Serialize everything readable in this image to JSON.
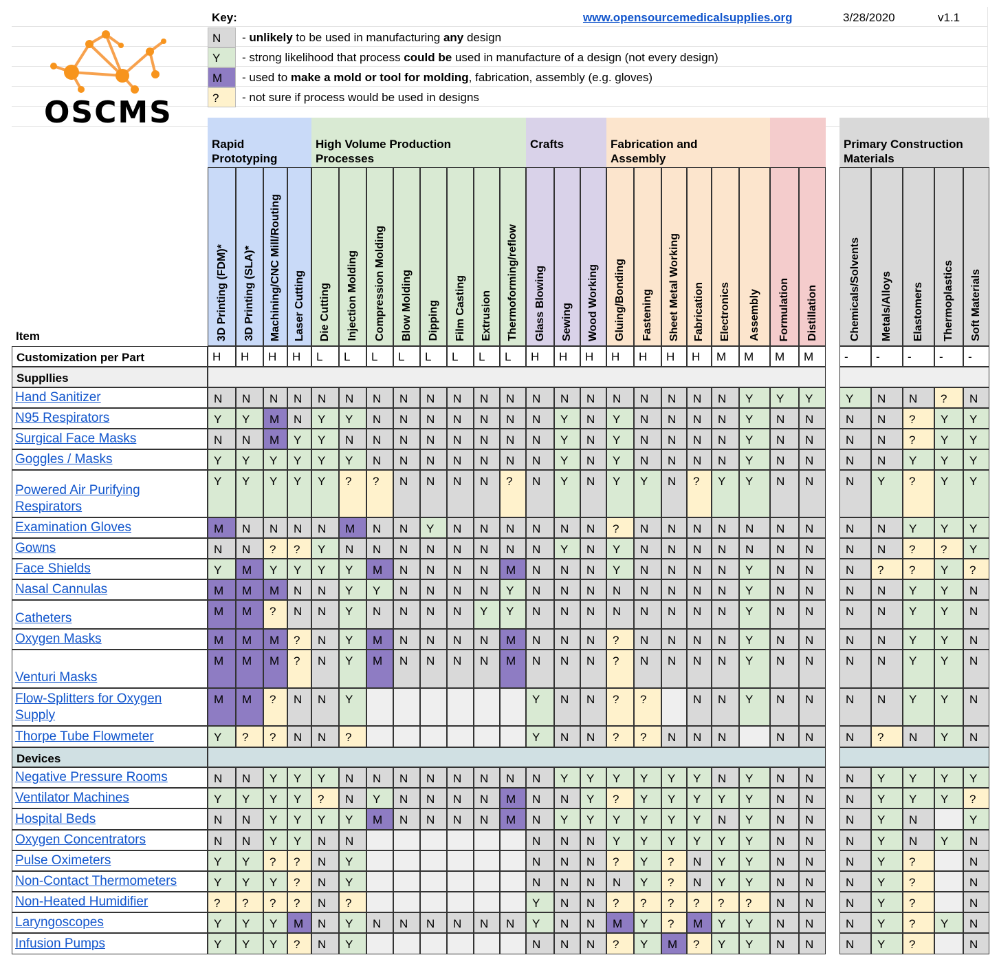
{
  "header": {
    "key_label": "Key:",
    "url": "www.opensourcemedicalsupplies.org",
    "date": "3/28/2020",
    "version": "v1.1",
    "logo_text": "OSCMS"
  },
  "key": [
    {
      "code": "N",
      "color": "#d9d9d9",
      "parts": [
        "- ",
        {
          "b": "unlikely"
        },
        " to be used in manufacturing ",
        {
          "b": "any"
        },
        " design"
      ]
    },
    {
      "code": "Y",
      "color": "#d9ead3",
      "parts": [
        "- strong likelihood that process ",
        {
          "b": "could be"
        },
        " used in manufacture of a design (not every design)"
      ]
    },
    {
      "code": "M",
      "color": "#8e7cc3",
      "parts": [
        "- used to ",
        {
          "b": "make a mold or tool for molding"
        },
        ", fabrication, assembly (e.g. gloves)"
      ]
    },
    {
      "code": "?",
      "color": "#fff2cc",
      "parts": [
        "- not sure if process would be used in designs"
      ]
    }
  ],
  "colors": {
    "N": "#d9d9d9",
    "Y": "#d9ead3",
    "M": "#8e7cc3",
    "?": "#fff2cc",
    "blank": "#efefef",
    "rapid": "#c9daf8",
    "hvp": "#d9ead3",
    "crafts": "#d9d2e9",
    "fab": "#fce5cd",
    "form": "#f4cccc",
    "materials": "#d9d9d9",
    "section_supplies": "#efefef",
    "section_devices": "#d0e0e3"
  },
  "groups": [
    {
      "label": "Rapid\nPrototyping",
      "color_key": "rapid",
      "span": 4
    },
    {
      "label": "High Volume Production\nProcesses",
      "color_key": "hvp",
      "span": 8
    },
    {
      "label": "Crafts",
      "color_key": "crafts",
      "span": 3
    },
    {
      "label": "Fabrication and\nAssembly",
      "color_key": "fab",
      "span": 6
    },
    {
      "label": "",
      "color_key": "form",
      "span": 2
    },
    {
      "label": "Primary Construction\nMaterials",
      "color_key": "materials",
      "span": 5
    }
  ],
  "item_header": "Item",
  "columns": [
    "3D Printing (FDM)*",
    "3D Printing (SLA)*",
    "Machining/CNC Mill/Routing",
    "Laser Cutting",
    "Die Cutting",
    "Injection Molding",
    "Compression Molding",
    "Blow Molding",
    "Dipping",
    "Film Casting",
    "Extrusion",
    "Thermoforming/reflow",
    "Glass Blowing",
    "Sewing",
    "Wood Working",
    "Gluing/Bonding",
    "Fastening",
    "Sheet Metal Working",
    "Fabrication",
    "Electronics",
    "Assembly",
    "Formulation",
    "Distillation",
    "Chemicals/Solvents",
    "Metals/Alloys",
    "Elastomers",
    "Thermoplastics",
    "Soft Materials"
  ],
  "customization": {
    "label": "Customization per Part",
    "values": [
      "H",
      "H",
      "H",
      "H",
      "L",
      "L",
      "L",
      "L",
      "L",
      "L",
      "L",
      "L",
      "H",
      "H",
      "H",
      "H",
      "H",
      "H",
      "H",
      "M",
      "M",
      "M",
      "M",
      "-",
      "-",
      "-",
      "-",
      "-"
    ]
  },
  "sections": [
    {
      "title": "Suppllies",
      "color_key": "section_supplies",
      "rows": [
        {
          "item": "Hand Sanitizer",
          "v": [
            "N",
            "N",
            "N",
            "N",
            "N",
            "N",
            "N",
            "N",
            "N",
            "N",
            "N",
            "N",
            "N",
            "N",
            "N",
            "N",
            "N",
            "N",
            "N",
            "N",
            "Y",
            "Y",
            "Y",
            "Y",
            "N",
            "N",
            "?",
            "N"
          ]
        },
        {
          "item": "N95 Respirators",
          "v": [
            "Y",
            "Y",
            "M",
            "N",
            "Y",
            "Y",
            "N",
            "N",
            "N",
            "N",
            "N",
            "N",
            "N",
            "Y",
            "N",
            "Y",
            "N",
            "N",
            "N",
            "N",
            "Y",
            "N",
            "N",
            "N",
            "N",
            "?",
            "Y",
            "Y"
          ]
        },
        {
          "item": "Surgical Face Masks",
          "v": [
            "N",
            "N",
            "M",
            "Y",
            "Y",
            "N",
            "N",
            "N",
            "N",
            "N",
            "N",
            "N",
            "N",
            "Y",
            "N",
            "Y",
            "N",
            "N",
            "N",
            "N",
            "Y",
            "N",
            "N",
            "N",
            "N",
            "?",
            "Y",
            "Y"
          ]
        },
        {
          "item": "Goggles / Masks",
          "v": [
            "Y",
            "Y",
            "Y",
            "Y",
            "Y",
            "Y",
            "N",
            "N",
            "N",
            "N",
            "N",
            "N",
            "N",
            "Y",
            "N",
            "Y",
            "N",
            "N",
            "N",
            "N",
            "Y",
            "N",
            "N",
            "N",
            "N",
            "Y",
            "Y",
            "Y"
          ]
        },
        {
          "item": "Powered Air Purifying \nRespirators",
          "v": [
            "Y",
            "Y",
            "Y",
            "Y",
            "Y",
            "?",
            "?",
            "N",
            "N",
            "N",
            "N",
            "?",
            "N",
            "Y",
            "N",
            "Y",
            "Y",
            "N",
            "?",
            "Y",
            "Y:",
            "N",
            "N",
            "N",
            "Y",
            "?",
            "Y",
            "Y"
          ]
        },
        {
          "item": "Examination Gloves",
          "v": [
            "M",
            "N",
            "N",
            "N",
            "N",
            "M",
            "N",
            "N",
            "Y",
            "N",
            "N",
            "N",
            "N",
            "N",
            "N",
            "?",
            "N",
            "N",
            "N",
            "N",
            "N",
            "N",
            "N",
            "N",
            "N",
            "Y",
            "Y",
            "Y"
          ]
        },
        {
          "item": "Gowns",
          "v": [
            "N",
            "N",
            "?",
            "?",
            "Y",
            "N",
            "N",
            "N",
            "N",
            "N",
            "N",
            "N",
            "N",
            "Y",
            "N",
            "Y",
            "N",
            "N",
            "N",
            "N",
            "N",
            "N",
            "N",
            "N",
            "N",
            "?",
            "?",
            "Y"
          ]
        },
        {
          "item": "Face Shields",
          "v": [
            "Y",
            "M",
            "Y",
            "Y",
            "Y",
            "Y",
            "M",
            "N",
            "N",
            "N",
            "N",
            "M",
            "N",
            "N",
            "N",
            "Y",
            "N",
            "N",
            "N",
            "N",
            "Y",
            "N",
            "N",
            "N",
            "?",
            "?",
            "Y",
            "?"
          ]
        },
        {
          "item": "Nasal Cannulas",
          "v": [
            "M",
            "M",
            "M",
            "N",
            "N",
            "Y",
            "Y",
            "N",
            "N",
            "N",
            "N",
            "Y",
            "N",
            "N",
            "N",
            "N",
            "N",
            "N",
            "N",
            "N",
            "Y",
            "N",
            "N",
            "N",
            "N",
            "Y",
            "Y",
            "N"
          ]
        },
        {
          "item": "Catheters",
          "v": [
            "M",
            "M",
            "?",
            "N",
            "N",
            "Y",
            "N",
            "N",
            "N",
            "N",
            "Y",
            "Y",
            "N",
            "N",
            "N",
            "N",
            "N",
            "N",
            "N",
            "N",
            "Y",
            "N",
            "N",
            "N",
            "N",
            "Y",
            "Y",
            "N"
          ]
        },
        {
          "item": "Oxygen Masks",
          "v": [
            "M",
            "M",
            "M",
            "?",
            "N",
            "Y",
            "M",
            "N",
            "N",
            "N",
            "N",
            "M",
            "N",
            "N",
            "N",
            "?",
            "N",
            "N",
            "N",
            "N",
            "Y",
            "N",
            "N",
            "N",
            "N",
            "Y",
            "Y",
            "N"
          ]
        },
        {
          "item": "Venturi Masks",
          "v": [
            "M",
            "M",
            "M",
            "?",
            "N",
            "Y",
            "M",
            "N",
            "N",
            "N",
            "N",
            "M",
            "N",
            "N",
            "N",
            "?",
            "N",
            "N",
            "N",
            "N",
            "Y",
            "N",
            "N",
            "N",
            "N",
            "Y",
            "Y",
            "N"
          ]
        },
        {
          "item": "Flow-Splitters for Oxygen \nSupply",
          "v": [
            "M",
            "M",
            "?",
            "N",
            "N",
            "Y",
            "",
            "",
            "",
            "",
            "",
            "",
            "Y",
            "N",
            "N",
            "?",
            "?",
            "",
            "N",
            "N",
            "Y",
            "N",
            "N",
            "N",
            "N",
            "Y",
            "Y",
            "N"
          ]
        },
        {
          "item": "Thorpe Tube Flowmeter",
          "v": [
            "Y",
            "?",
            "?",
            "N",
            "N",
            "?",
            "",
            "",
            "",
            "",
            "",
            "",
            "Y",
            "N",
            "N",
            "?",
            "?",
            "N",
            "N",
            "N",
            "",
            "N",
            "N",
            "N",
            "?",
            "N",
            "Y",
            "N"
          ]
        }
      ]
    },
    {
      "title": "Devices",
      "color_key": "section_devices",
      "rows": [
        {
          "item": "Negative Pressure Rooms",
          "v": [
            "N",
            "N",
            "Y",
            "Y",
            "Y",
            "N",
            "N",
            "N",
            "N",
            "N",
            "N",
            "N",
            "N",
            "Y",
            "Y",
            "Y",
            "Y",
            "Y",
            "Y",
            "N",
            "Y",
            "N",
            "N",
            "N",
            "Y",
            "Y",
            "Y",
            "Y"
          ]
        },
        {
          "item": "Ventilator Machines",
          "v": [
            "Y",
            "Y",
            "Y",
            "Y",
            "?",
            "N",
            "Y",
            "N",
            "N",
            "N",
            "N",
            "M",
            "N",
            "N",
            "Y",
            "?",
            "Y",
            "Y",
            "Y",
            "Y",
            "Y",
            "N",
            "N",
            "N",
            "Y",
            "Y",
            "Y",
            "?"
          ]
        },
        {
          "item": "Hospital Beds",
          "v": [
            "N",
            "N",
            "Y",
            "Y",
            "Y",
            "Y",
            "M",
            "N",
            "N",
            "N",
            "N",
            "M",
            "N",
            "Y",
            "Y",
            "Y",
            "Y",
            "Y",
            "Y",
            "N",
            "Y",
            "N",
            "N",
            "N",
            "Y",
            "N",
            "",
            "Y"
          ]
        },
        {
          "item": "Oxygen Concentrators",
          "v": [
            "N",
            "N",
            "Y",
            "Y",
            "N",
            "N",
            "",
            "",
            "",
            "",
            "",
            "",
            "N",
            "N",
            "N",
            "Y",
            "Y",
            "Y",
            "Y",
            "Y",
            "Y",
            "N",
            "N",
            "N",
            "Y",
            "N",
            "Y",
            "N"
          ]
        },
        {
          "item": "Pulse Oximeters",
          "v": [
            "Y",
            "Y",
            "?",
            "?",
            "N",
            "Y",
            "",
            "",
            "",
            "",
            "",
            "",
            "N",
            "N",
            "N",
            "?",
            "Y",
            "?",
            "N",
            "Y",
            "Y",
            "N",
            "N",
            "N",
            "Y",
            "?",
            "",
            "N"
          ]
        },
        {
          "item": "Non-Contact Thermometers",
          "v": [
            "Y",
            "Y",
            "Y",
            "?",
            "N",
            "Y",
            "",
            "",
            "",
            "",
            "",
            "",
            "N",
            "N",
            "N",
            "N",
            "Y",
            "?",
            "N",
            "Y",
            "Y",
            "N",
            "N",
            "N",
            "Y",
            "?",
            "",
            "N"
          ]
        },
        {
          "item": "Non-Heated Humidifier",
          "v": [
            "?",
            "?",
            "?",
            "?",
            "N",
            "?",
            "",
            "",
            "",
            "",
            "",
            "",
            "Y",
            "N",
            "N",
            "?",
            "?",
            "?",
            "?",
            "?",
            "?",
            "N",
            "N",
            "N",
            "Y",
            "?",
            "",
            "N"
          ]
        },
        {
          "item": "Laryngoscopes",
          "v": [
            "Y",
            "Y",
            "Y",
            "M",
            "N",
            "Y",
            "N",
            "N",
            "N",
            "N",
            "N",
            "N",
            "Y",
            "N",
            "N",
            "M",
            "Y",
            "?",
            "M",
            "Y",
            "Y",
            "N",
            "N",
            "N",
            "Y",
            "?",
            "Y",
            "N"
          ]
        },
        {
          "item": "Infusion Pumps",
          "v": [
            "Y",
            "Y",
            "Y",
            "?",
            "N",
            "Y",
            "",
            "",
            "",
            "",
            "",
            "",
            "N",
            "N",
            "N",
            "?",
            "Y",
            "M",
            "?",
            "Y",
            "Y",
            "N",
            "N",
            "N",
            "Y",
            "?",
            "",
            "N"
          ]
        }
      ]
    }
  ]
}
